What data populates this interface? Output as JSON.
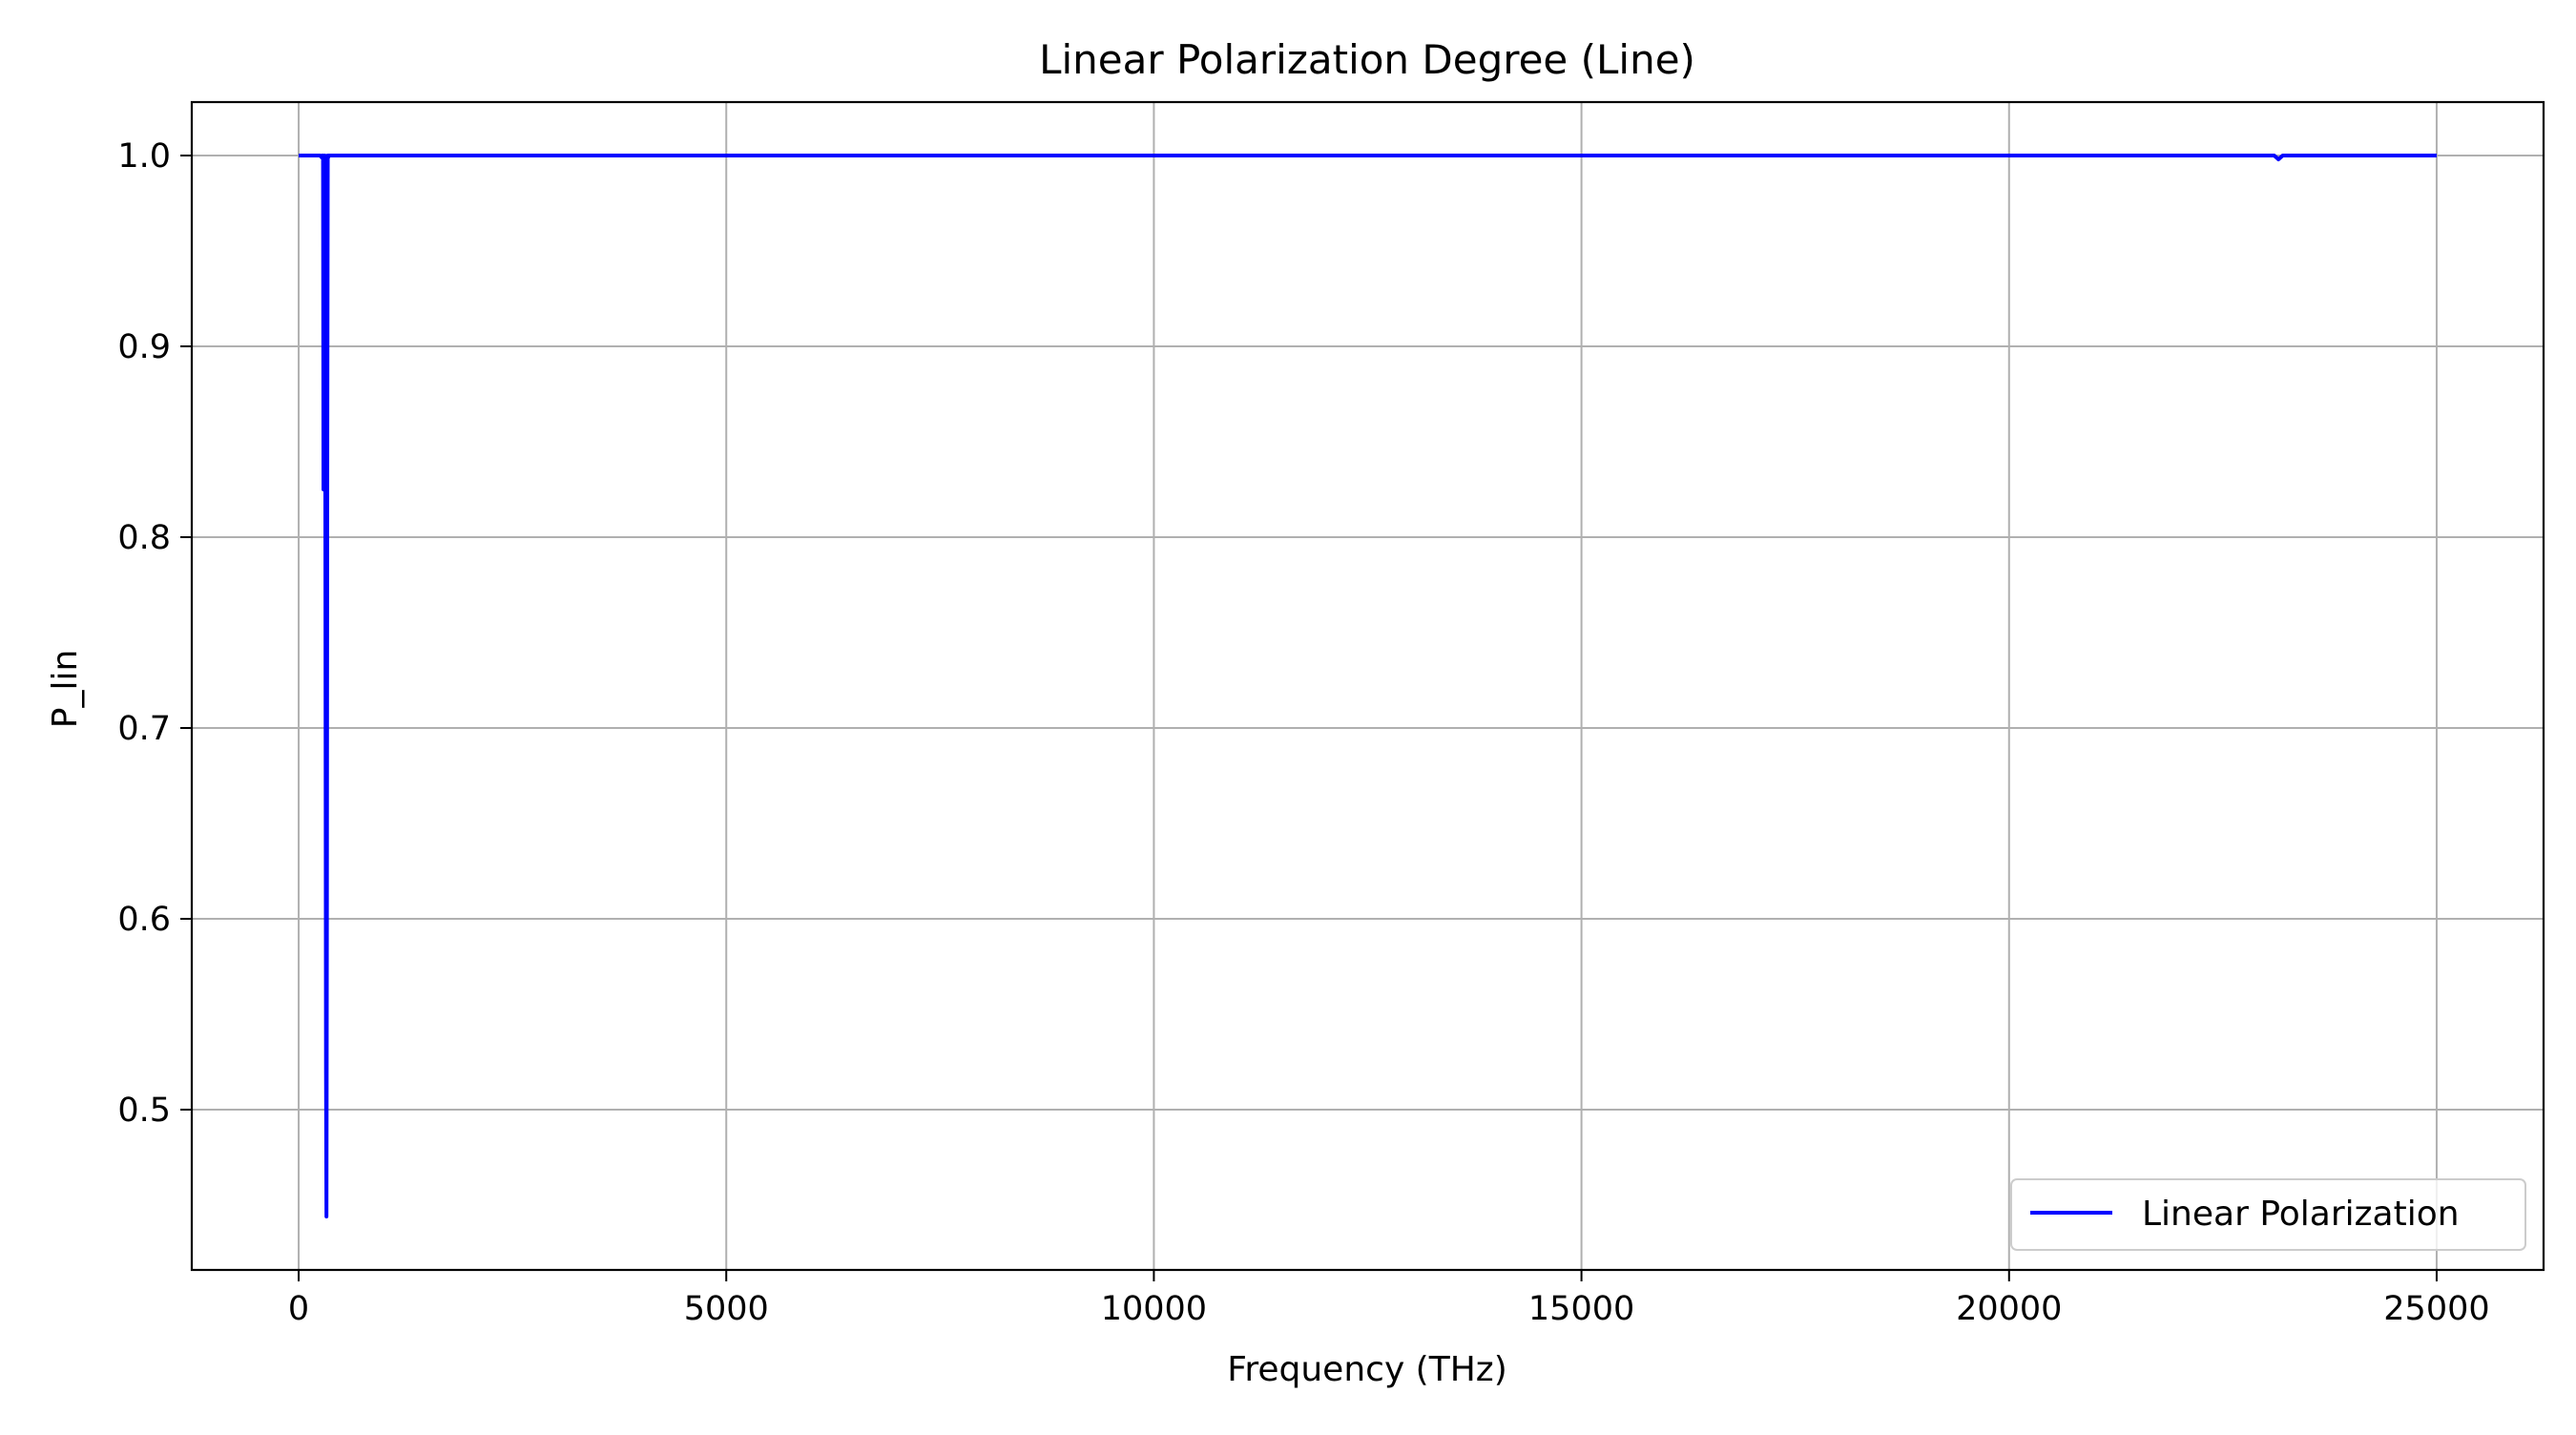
{
  "chart_data": {
    "type": "line",
    "title": "Linear Polarization Degree (Line)",
    "xlabel": "Frequency (THz)",
    "ylabel": "P_lin",
    "xlim": [
      -1250,
      26250
    ],
    "ylim": [
      0.416,
      1.028
    ],
    "xticks": [
      0,
      5000,
      10000,
      15000,
      20000,
      25000
    ],
    "yticks": [
      0.5,
      0.6,
      0.7,
      0.8,
      0.9,
      1.0
    ],
    "xtick_labels": [
      "0",
      "5000",
      "10000",
      "15000",
      "20000",
      "25000"
    ],
    "ytick_labels": [
      "0.5",
      "0.6",
      "0.7",
      "0.8",
      "0.9",
      "1.0"
    ],
    "grid": true,
    "legend_position": "lower-right",
    "series": [
      {
        "name": "Linear Polarization",
        "color": "#0000ff",
        "x": [
          0,
          250,
          270,
          275,
          285,
          290,
          300,
          305,
          310,
          315,
          320,
          325,
          330,
          335,
          340,
          345,
          350,
          355,
          500,
          5000,
          10000,
          15000,
          20000,
          22500,
          23100,
          23150,
          23200,
          25000
        ],
        "y": [
          1.0,
          1.0,
          0.999,
          1.0,
          1.0,
          0.825,
          0.825,
          1.0,
          0.9,
          0.7,
          0.52,
          0.444,
          0.6,
          0.85,
          1.0,
          0.999,
          1.0,
          1.0,
          1.0,
          1.0,
          1.0,
          1.0,
          1.0,
          1.0,
          1.0,
          0.998,
          1.0,
          1.0
        ]
      }
    ]
  }
}
